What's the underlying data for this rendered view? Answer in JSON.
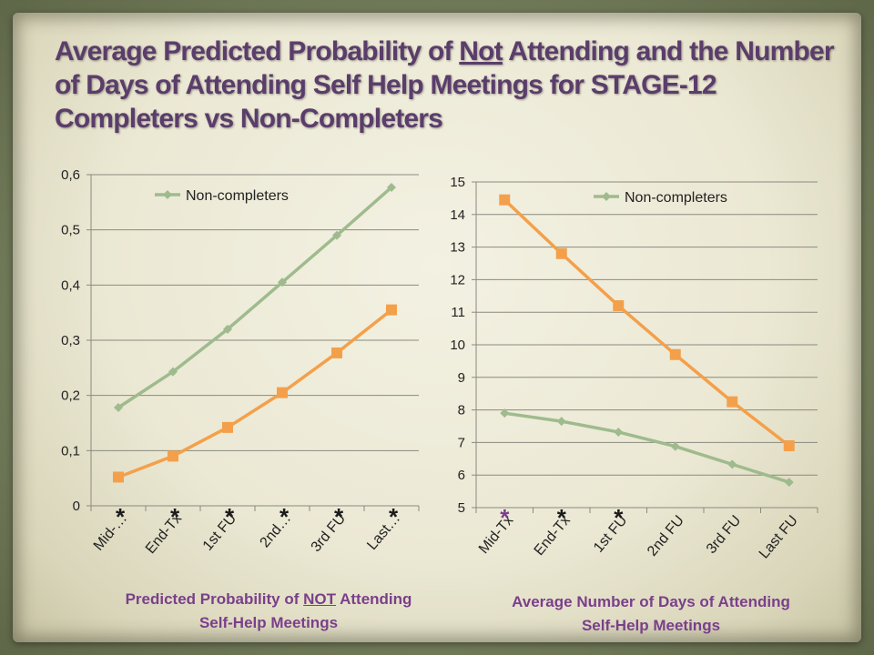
{
  "title": {
    "pre": "Average Predicted Probability of ",
    "underlined": "Not",
    "post": " Attending and the Number of Days of Attending Self Help Meetings for STAGE-12 Completers vs Non-Completers"
  },
  "colors": {
    "non_completers": "#9fbb8e",
    "completers": "#f4a04a",
    "asterisk_black": "#1a1a1a",
    "asterisk_purple": "#7a3f8a",
    "caption": "#7a3f8a",
    "title": "#5b3d6b"
  },
  "captions": {
    "left_pre": "Predicted Probability of ",
    "left_underlined": "NOT",
    "left_post": " Attending",
    "left_line2": "Self-Help Meetings",
    "right_line1": "Average Number of Days of Attending",
    "right_line2": "Self-Help Meetings"
  },
  "chart_data": [
    {
      "type": "line",
      "categories": [
        "Mid-…",
        "End-Tx",
        "1st FU",
        "2nd…",
        "3rd FU",
        "Last…"
      ],
      "ylim": [
        0,
        0.6
      ],
      "yticks": [
        "0",
        "0,1",
        "0,2",
        "0,3",
        "0,4",
        "0,5",
        "0,6"
      ],
      "legend": {
        "label": "Non-completers",
        "position": "top-left"
      },
      "grid": true,
      "series": [
        {
          "name": "Non-completers",
          "color": "#9fbb8e",
          "marker": "diamond",
          "values": [
            0.178,
            0.243,
            0.32,
            0.405,
            0.49,
            0.577
          ]
        },
        {
          "color": "#f4a04a",
          "marker": "square",
          "values": [
            0.052,
            0.09,
            0.142,
            0.205,
            0.277,
            0.355
          ]
        }
      ],
      "asterisks": [
        {
          "label": "*",
          "category": 0,
          "color": "#1a1a1a"
        },
        {
          "label": "*",
          "category": 1,
          "color": "#1a1a1a"
        },
        {
          "label": "*",
          "category": 2,
          "color": "#1a1a1a"
        },
        {
          "label": "*",
          "category": 3,
          "color": "#1a1a1a"
        },
        {
          "label": "*",
          "category": 4,
          "color": "#1a1a1a"
        },
        {
          "label": "*",
          "category": 5,
          "color": "#1a1a1a"
        }
      ]
    },
    {
      "type": "line",
      "categories": [
        "Mid-Tx",
        "End-Tx",
        "1st FU",
        "2nd FU",
        "3rd FU",
        "Last FU"
      ],
      "ylim": [
        5,
        15
      ],
      "yticks": [
        "5",
        "6",
        "7",
        "8",
        "9",
        "10",
        "11",
        "12",
        "13",
        "14",
        "15"
      ],
      "legend": {
        "label": "Non-completers",
        "position": "top-right"
      },
      "grid": true,
      "series": [
        {
          "name": "Non-completers",
          "color": "#9fbb8e",
          "marker": "diamond",
          "values": [
            7.9,
            7.65,
            7.32,
            6.88,
            6.33,
            5.78
          ]
        },
        {
          "color": "#f4a04a",
          "marker": "square",
          "values": [
            14.45,
            12.8,
            11.2,
            9.7,
            8.25,
            6.9
          ]
        }
      ],
      "asterisks": [
        {
          "label": "*",
          "category": 0,
          "color": "#7a3f8a"
        },
        {
          "label": "*",
          "category": 1,
          "color": "#1a1a1a"
        },
        {
          "label": "*",
          "category": 2,
          "color": "#1a1a1a"
        }
      ]
    }
  ]
}
